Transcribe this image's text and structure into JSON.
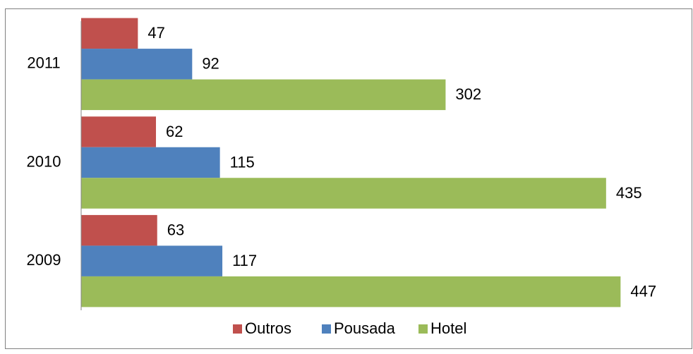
{
  "chart_data": {
    "type": "bar",
    "orientation": "horizontal",
    "categories": [
      "2009",
      "2010",
      "2011"
    ],
    "series": [
      {
        "name": "Outros",
        "color": "#c0504d",
        "values": [
          63,
          62,
          47
        ]
      },
      {
        "name": "Pousada",
        "color": "#4f81bd",
        "values": [
          117,
          115,
          92
        ]
      },
      {
        "name": "Hotel",
        "color": "#9bbb59",
        "values": [
          447,
          435,
          302
        ]
      }
    ],
    "xlim": [
      0,
      500
    ],
    "legend": "bottom"
  }
}
